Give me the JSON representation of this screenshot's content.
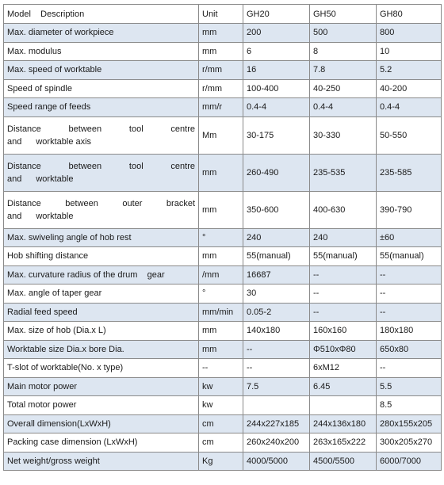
{
  "header": {
    "description": "Model    Description",
    "unit": "Unit",
    "models": [
      "GH20",
      "GH50",
      "GH80"
    ]
  },
  "rows": [
    {
      "desc": "Max. diameter of workpiece",
      "unit": "mm",
      "values": [
        "200",
        "500",
        "800"
      ],
      "shaded": true
    },
    {
      "desc": "Max. modulus",
      "unit": "mm",
      "values": [
        "6",
        "8",
        "10"
      ],
      "shaded": false
    },
    {
      "desc": "Max. speed of worktable",
      "unit": "r/mm",
      "values": [
        "16",
        "7.8",
        "5.2"
      ],
      "shaded": true
    },
    {
      "desc": "Speed of spindle",
      "unit": "r/mm",
      "values": [
        "100-400",
        "40-250",
        "40-200"
      ],
      "shaded": false
    },
    {
      "desc": "Speed range of feeds",
      "unit": "mm/r",
      "values": [
        "0.4-4",
        "0.4-4",
        "0.4-4"
      ],
      "shaded": true
    },
    {
      "desc_line1": "Distance   between   tool   centre",
      "desc_line2_words": [
        "and",
        "worktable axis"
      ],
      "unit": "Mm",
      "values": [
        "30-175",
        "30-330",
        "50-550"
      ],
      "shaded": false,
      "tall": true
    },
    {
      "desc_line1": "Distance   between   tool   centre",
      "desc_line2_words": [
        "and",
        "worktable"
      ],
      "unit": "mm",
      "values": [
        "260-490",
        "235-535",
        "235-585"
      ],
      "shaded": true,
      "tall": true
    },
    {
      "desc_line1": "Distance   between   outer   bracket",
      "desc_line2_words": [
        "and",
        "worktable"
      ],
      "unit": "mm",
      "values": [
        "350-600",
        "400-630",
        "390-790"
      ],
      "shaded": false,
      "tall": true
    },
    {
      "desc": "Max. swiveling angle of hob rest",
      "unit": "°",
      "values": [
        "240",
        "240",
        "±60"
      ],
      "shaded": true
    },
    {
      "desc": "Hob shifting distance",
      "unit": "mm",
      "values": [
        "55(manual)",
        "55(manual)",
        "55(manual)"
      ],
      "shaded": false
    },
    {
      "desc": "Max. curvature radius of the drum    gear",
      "unit": "/mm",
      "values": [
        "16687",
        "--",
        "--"
      ],
      "shaded": true
    },
    {
      "desc": "Max. angle of taper gear",
      "unit": "°",
      "values": [
        "30",
        "--",
        "--"
      ],
      "shaded": false
    },
    {
      "desc": "Radial feed speed",
      "unit": "mm/min",
      "values": [
        "0.05-2",
        "--",
        "--"
      ],
      "shaded": true
    },
    {
      "desc": "Max. size of hob (Dia.x L)",
      "unit": "mm",
      "values": [
        "140x180",
        "160x160",
        "180x180"
      ],
      "shaded": false
    },
    {
      "desc": "Worktable size Dia.x bore Dia.",
      "unit": "mm",
      "values": [
        "--",
        "Φ510xΦ80",
        "650x80"
      ],
      "shaded": true
    },
    {
      "desc": "T-slot of worktable(No. x type)",
      "unit": "--",
      "values": [
        "--",
        "6xM12",
        "--"
      ],
      "shaded": false
    },
    {
      "desc": "Main motor power",
      "unit": "kw",
      "values": [
        "7.5",
        "6.45",
        "5.5"
      ],
      "shaded": true
    },
    {
      "desc": "Total motor power",
      "unit": "kw",
      "values": [
        "",
        "",
        "8.5"
      ],
      "shaded": false
    },
    {
      "desc": "Overall dimension(LxWxH)",
      "unit": "cm",
      "values": [
        "244x227x185",
        "244x136x180",
        "280x155x205"
      ],
      "shaded": true
    },
    {
      "desc": "Packing case dimension (LxWxH)",
      "unit": "cm",
      "values": [
        "260x240x200",
        "263x165x222",
        "300x205x270"
      ],
      "shaded": false
    },
    {
      "desc": "Net weight/gross weight",
      "unit": "Kg",
      "values": [
        "4000/5000",
        "4500/5500",
        "6000/7000"
      ],
      "shaded": true
    }
  ]
}
